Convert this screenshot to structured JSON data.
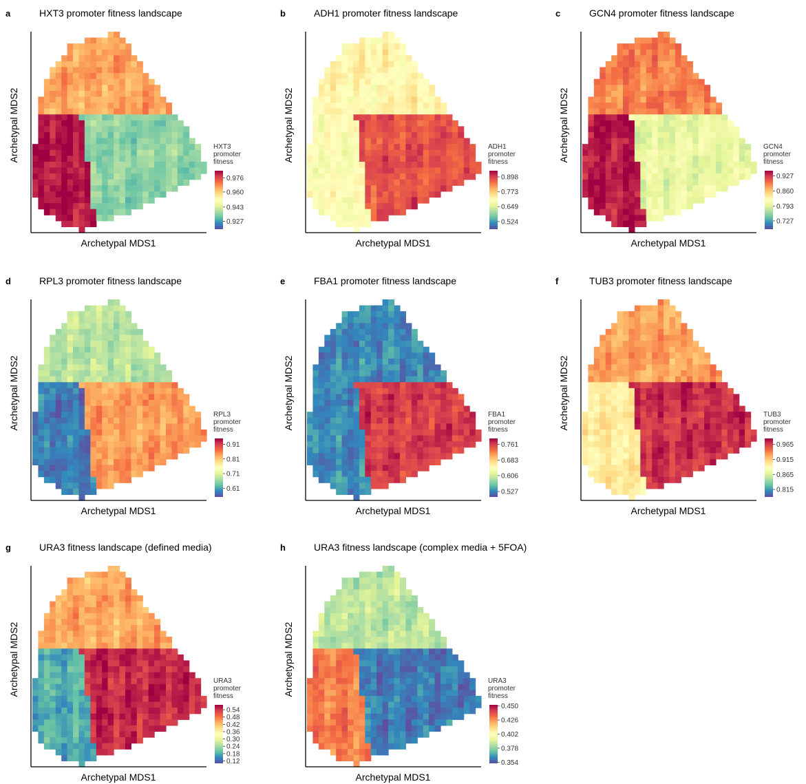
{
  "palette": [
    "#5e4fa2",
    "#3288bd",
    "#66c2a5",
    "#abdda4",
    "#e6f598",
    "#ffffbf",
    "#fee08b",
    "#fdae61",
    "#f46d43",
    "#d53e4f",
    "#9e0142"
  ],
  "chart_data": [
    {
      "type": "heatmap",
      "panel_letter": "a",
      "title": "HXT3 promoter fitness landscape",
      "xlabel": "Archetypal MDS1",
      "ylabel": "Archetypal MDS2",
      "colorbar": {
        "label_lines": [
          "HXT3",
          "promoter",
          "fitness"
        ],
        "tick_labels": [
          "0.976",
          "0.960",
          "0.943",
          "0.927"
        ],
        "tick_values": [
          0.976,
          0.96,
          0.943,
          0.927
        ],
        "range": [
          0.918,
          0.984
        ]
      },
      "field_regions": [
        {
          "region": "upper",
          "value": 0.965
        },
        {
          "region": "left-lower",
          "value": 0.982
        },
        {
          "region": "right-lower",
          "value": 0.935
        }
      ]
    },
    {
      "type": "heatmap",
      "panel_letter": "b",
      "title": "ADH1 promoter fitness landscape",
      "xlabel": "Archetypal MDS1",
      "ylabel": "Archetypal MDS2",
      "colorbar": {
        "label_lines": [
          "ADH1",
          "promoter",
          "fitness"
        ],
        "tick_labels": [
          "0.898",
          "0.773",
          "0.649",
          "0.524"
        ],
        "tick_values": [
          0.898,
          0.773,
          0.649,
          0.524
        ],
        "range": [
          0.46,
          0.95
        ]
      },
      "field_regions": [
        {
          "region": "upper",
          "value": 0.72
        },
        {
          "region": "left-lower",
          "value": 0.7
        },
        {
          "region": "right-lower",
          "value": 0.88
        }
      ]
    },
    {
      "type": "heatmap",
      "panel_letter": "c",
      "title": "GCN4 promoter fitness landscape",
      "xlabel": "Archetypal MDS1",
      "ylabel": "Archetypal MDS2",
      "colorbar": {
        "label_lines": [
          "GCN4",
          "promoter",
          "fitness"
        ],
        "tick_labels": [
          "0.927",
          "0.860",
          "0.793",
          "0.727"
        ],
        "tick_values": [
          0.927,
          0.86,
          0.793,
          0.727
        ],
        "range": [
          0.69,
          0.95
        ]
      },
      "field_regions": [
        {
          "region": "upper",
          "value": 0.89
        },
        {
          "region": "left-lower",
          "value": 0.94
        },
        {
          "region": "right-lower",
          "value": 0.8
        }
      ]
    },
    {
      "type": "heatmap",
      "panel_letter": "d",
      "title": "RPL3 promoter fitness landscape",
      "xlabel": "Archetypal MDS1",
      "ylabel": "Archetypal MDS2",
      "colorbar": {
        "label_lines": [
          "RPL3",
          "promoter",
          "fitness"
        ],
        "tick_labels": [
          "0.91",
          "0.81",
          "0.71",
          "0.61"
        ],
        "tick_values": [
          0.91,
          0.81,
          0.71,
          0.61
        ],
        "range": [
          0.55,
          0.95
        ]
      },
      "field_regions": [
        {
          "region": "upper",
          "value": 0.68
        },
        {
          "region": "left-lower",
          "value": 0.58
        },
        {
          "region": "right-lower",
          "value": 0.84
        }
      ]
    },
    {
      "type": "heatmap",
      "panel_letter": "e",
      "title": "FBA1 promoter fitness landscape",
      "xlabel": "Archetypal MDS1",
      "ylabel": "Archetypal MDS2",
      "colorbar": {
        "label_lines": [
          "FBA1",
          "promoter",
          "fitness"
        ],
        "tick_labels": [
          "0.761",
          "0.683",
          "0.606",
          "0.527"
        ],
        "tick_values": [
          0.761,
          0.683,
          0.606,
          0.527
        ],
        "range": [
          0.5,
          0.79
        ]
      },
      "field_regions": [
        {
          "region": "upper",
          "value": 0.53
        },
        {
          "region": "left-lower",
          "value": 0.53
        },
        {
          "region": "right-lower",
          "value": 0.76
        }
      ]
    },
    {
      "type": "heatmap",
      "panel_letter": "f",
      "title": "TUB3 promoter fitness landscape",
      "xlabel": "Archetypal MDS1",
      "ylabel": "Archetypal MDS2",
      "colorbar": {
        "label_lines": [
          "TUB3",
          "promoter",
          "fitness"
        ],
        "tick_labels": [
          "0.965",
          "0.915",
          "0.865",
          "0.815"
        ],
        "tick_values": [
          0.965,
          0.915,
          0.865,
          0.815
        ],
        "range": [
          0.79,
          0.985
        ]
      },
      "field_regions": [
        {
          "region": "upper",
          "value": 0.93
        },
        {
          "region": "left-lower",
          "value": 0.9
        },
        {
          "region": "right-lower",
          "value": 0.97
        }
      ]
    },
    {
      "type": "heatmap",
      "panel_letter": "g",
      "title": "URA3 fitness landscape (defined media)",
      "xlabel": "Archetypal MDS1",
      "ylabel": "Archetypal MDS2",
      "colorbar": {
        "label_lines": [
          "URA3",
          "promoter",
          "fitness"
        ],
        "tick_labels": [
          "0.54",
          "0.48",
          "0.42",
          "0.36",
          "0.30",
          "0.24",
          "0.18",
          "0.12"
        ],
        "tick_values": [
          0.54,
          0.48,
          0.42,
          0.36,
          0.3,
          0.24,
          0.18,
          0.12
        ],
        "range": [
          0.1,
          0.58
        ]
      },
      "field_regions": [
        {
          "region": "upper",
          "value": 0.44
        },
        {
          "region": "left-lower",
          "value": 0.18
        },
        {
          "region": "right-lower",
          "value": 0.55
        }
      ]
    },
    {
      "type": "heatmap",
      "panel_letter": "h",
      "title": "URA3 fitness landscape (complex media + 5FOA)",
      "xlabel": "Archetypal MDS1",
      "ylabel": "Archetypal MDS2",
      "colorbar": {
        "label_lines": [
          "URA3",
          "promoter",
          "fitness"
        ],
        "tick_labels": [
          "0.450",
          "0.426",
          "0.402",
          "0.378",
          "0.354"
        ],
        "tick_values": [
          0.45,
          0.426,
          0.402,
          0.378,
          0.354
        ],
        "range": [
          0.352,
          0.452
        ]
      },
      "field_regions": [
        {
          "region": "upper",
          "value": 0.385
        },
        {
          "region": "left-lower",
          "value": 0.43
        },
        {
          "region": "right-lower",
          "value": 0.36
        }
      ]
    }
  ]
}
